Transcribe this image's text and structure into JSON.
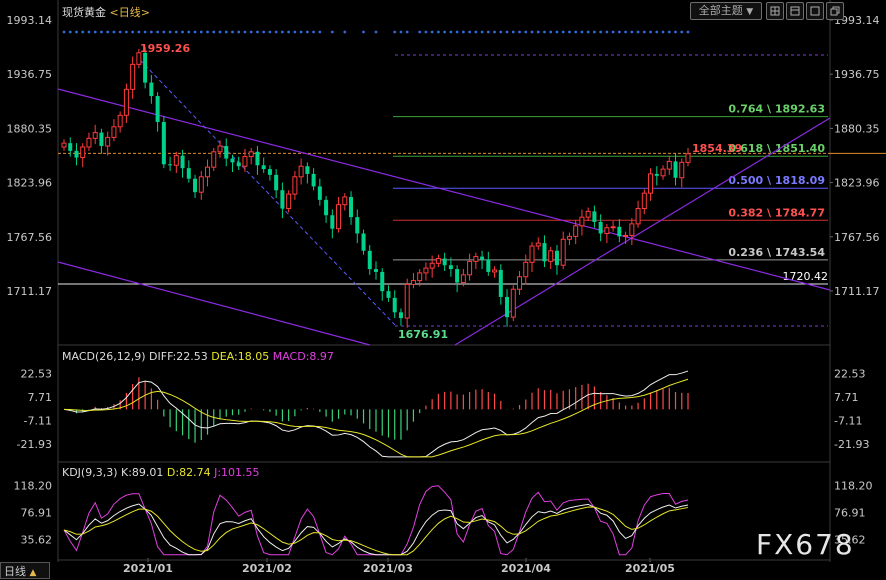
{
  "header": {
    "instrument": "现货黄金",
    "period_link": "<日线>",
    "theme_button": "全部主题",
    "theme_arrow": "▼"
  },
  "toolbar": {
    "btn1_icon": "grid-icon",
    "btn2_icon": "layout-icon",
    "btn3_icon": "expand-icon",
    "btn4_icon": "restore-icon"
  },
  "colors": {
    "up": "#ff3b3b",
    "down": "#00d28c",
    "fib_green": "#3aa23a",
    "fib_blue": "#5a5aff",
    "fib_red": "#d03030",
    "fib_gray": "#9a9a9a",
    "channel": "#8a2be2",
    "dotline": "#2f6bd8"
  },
  "chart_data": [
    {
      "type": "candlestick",
      "title": "现货黄金 <日线>",
      "ylim": [
        1650,
        2000
      ],
      "y_ticks": [
        "1993.14",
        "1936.75",
        "1880.35",
        "1823.96",
        "1767.56",
        "1711.17"
      ],
      "x_ticks": [
        "2021/01",
        "2021/02",
        "2021/03",
        "2021/04",
        "2021/05"
      ],
      "high_label": "1959.26",
      "low_label": "1676.91",
      "current_label": "1854.39",
      "h_level_label": "1720.42",
      "fib_levels": [
        {
          "ratio": "0.764",
          "value": "1892.63"
        },
        {
          "ratio": "0.618",
          "value": "1851.40"
        },
        {
          "ratio": "0.500",
          "value": "1818.09"
        },
        {
          "ratio": "0.382",
          "value": "1784.77"
        },
        {
          "ratio": "0.236",
          "value": "1743.54"
        }
      ],
      "closes": [
        1865,
        1857,
        1850,
        1861,
        1870,
        1876,
        1862,
        1871,
        1882,
        1894,
        1921,
        1947,
        1959,
        1928,
        1914,
        1887,
        1843,
        1842,
        1852,
        1839,
        1828,
        1814,
        1830,
        1840,
        1856,
        1862,
        1849,
        1845,
        1841,
        1851,
        1856,
        1842,
        1838,
        1832,
        1816,
        1797,
        1812,
        1830,
        1841,
        1833,
        1820,
        1806,
        1790,
        1776,
        1801,
        1809,
        1788,
        1771,
        1753,
        1734,
        1731,
        1711,
        1704,
        1689,
        1683,
        1718,
        1722,
        1730,
        1735,
        1740,
        1745,
        1738,
        1734,
        1720,
        1728,
        1742,
        1747,
        1744,
        1731,
        1733,
        1705,
        1684,
        1713,
        1726,
        1741,
        1758,
        1761,
        1742,
        1753,
        1738,
        1765,
        1768,
        1779,
        1788,
        1794,
        1783,
        1771,
        1777,
        1778,
        1768,
        1769,
        1781,
        1797,
        1813,
        1833,
        1831,
        1838,
        1846,
        1829,
        1845,
        1854
      ]
    },
    {
      "type": "line",
      "title": "MACD(26,12,9)",
      "ylim": [
        -32,
        28
      ],
      "y_ticks": [
        "22.53",
        "7.71",
        "-7.11",
        "-21.93"
      ],
      "series": [
        {
          "name": "DIFF",
          "last": "22.53"
        },
        {
          "name": "DEA",
          "last": "18.05"
        },
        {
          "name": "MACD",
          "last": "8.97"
        }
      ]
    },
    {
      "type": "line",
      "title": "KDJ(9,3,3)",
      "ylim": [
        10,
        130
      ],
      "y_ticks": [
        "118.20",
        "76.91",
        "35.62"
      ],
      "series": [
        {
          "name": "K",
          "last": "89.01"
        },
        {
          "name": "D",
          "last": "82.74"
        },
        {
          "name": "J",
          "last": "101.55"
        }
      ]
    }
  ],
  "macd_header": {
    "title": "MACD(26,12,9)",
    "diff": "DIFF:22.53",
    "dea": "DEA:18.05",
    "macd": "MACD:8.97"
  },
  "kdj_header": {
    "title": "KDJ(9,3,3)",
    "k": "K:89.01",
    "d": "D:82.74",
    "j": "J:101.55"
  },
  "period_tab": "日线",
  "watermark": "FX678"
}
